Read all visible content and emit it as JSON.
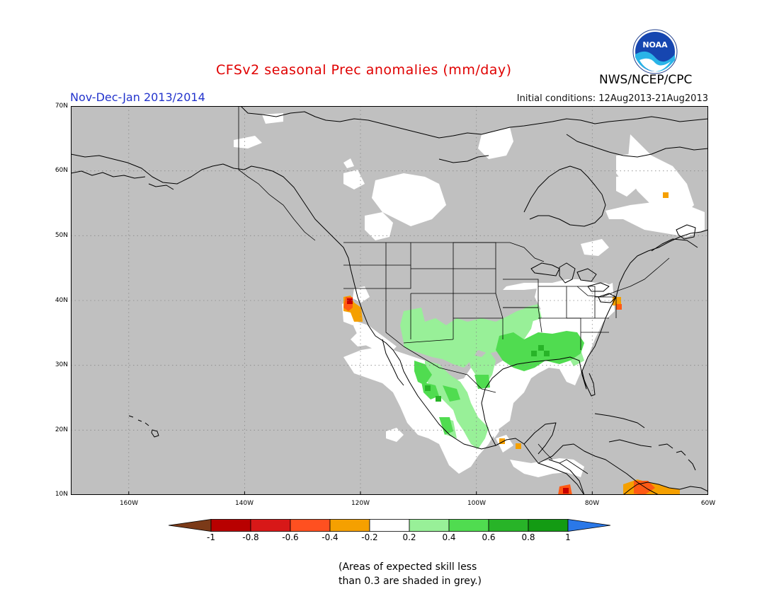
{
  "header": {
    "title": "CFSv2 seasonal Prec anomalies (mm/day)",
    "season": "Nov-Dec-Jan 2013/2014",
    "initial_conditions": "Initial conditions: 12Aug2013-21Aug2013",
    "agency": "NWS/NCEP/CPC",
    "logo_text": "NOAA"
  },
  "colors": {
    "grey_low_skill": "#c0c0c0",
    "white_near_normal": "#ffffff",
    "wet_light": "#98f098",
    "wet_medium": "#50dc50",
    "wet_strong": "#28b428",
    "dry_light": "#f5a000",
    "dry_medium": "#ff5a14",
    "dry_strong": "#c80000"
  },
  "map": {
    "latitude_labels": [
      "70N",
      "60N",
      "50N",
      "40N",
      "30N",
      "20N",
      "10N"
    ],
    "longitude_labels": [
      "160W",
      "140W",
      "120W",
      "100W",
      "80W",
      "60W"
    ]
  },
  "colorbar": {
    "labels": [
      "-1",
      "-0.8",
      "-0.6",
      "-0.4",
      "-0.2",
      "0.2",
      "0.4",
      "0.6",
      "0.8",
      "1"
    ],
    "colors": [
      "#7b3a18",
      "#b80000",
      "#d81818",
      "#ff5020",
      "#f5a000",
      "#ffffff",
      "#98f098",
      "#50dc50",
      "#28b428",
      "#139b13",
      "#2a78e8"
    ]
  },
  "footnote": {
    "line1": "(Areas of expected skill less",
    "line2": "than 0.3 are shaded in grey.)"
  }
}
